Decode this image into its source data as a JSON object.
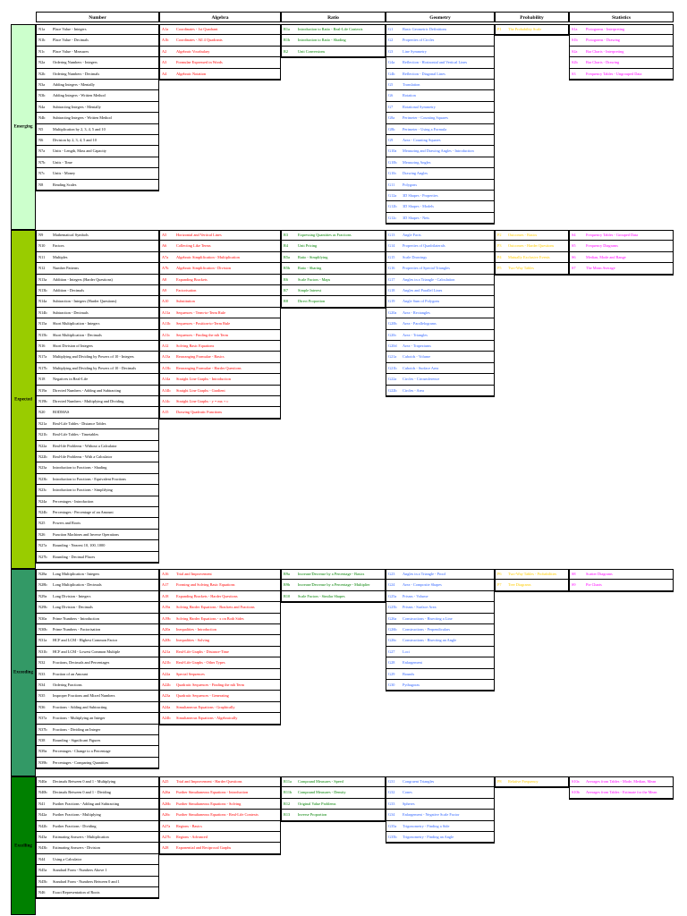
{
  "headers": [
    "Number",
    "Algebra",
    "Ratio",
    "Geometry",
    "Probability",
    "Statistics"
  ],
  "bands": [
    {
      "label": "Emerging",
      "color": "#ccffcc"
    },
    {
      "label": "Expected",
      "color": "#99cc00"
    },
    {
      "label": "Exceeding",
      "color": "#339966"
    },
    {
      "label": "Excelling",
      "color": "#008000"
    }
  ],
  "colors": {
    "number": "#000000",
    "algebra": "#ff0000",
    "ratio": "#008000",
    "geometry": "#3366ff",
    "probability": "#ffcc00",
    "statistics": "#ff00ff"
  },
  "number": [
    [
      [
        "N1a",
        "Place Value - Integers"
      ],
      [
        "N1b",
        "Place Value - Decimals"
      ],
      [
        "N1c",
        "Place Value - Measures"
      ],
      [
        "N2a",
        "Ordering Numbers - Integers"
      ],
      [
        "N2b",
        "Ordering Numbers - Decimals"
      ],
      [
        "N3a",
        "Adding Integers - Mentally"
      ],
      [
        "N3b",
        "Adding Integers - Written Method"
      ],
      [
        "N4a",
        "Subtracting Integers - Mentally"
      ],
      [
        "N4b",
        "Subtracting Integers - Written Method"
      ],
      [
        "N5",
        "Multiplication by 2, 3, 4, 5 and 10"
      ],
      [
        "N6",
        "Division by 2, 3, 4, 5 and 10"
      ],
      [
        "N7a",
        "Units - Length, Mass and Capacity"
      ],
      [
        "N7b",
        "Units - Time"
      ],
      [
        "N7c",
        "Units - Money"
      ],
      [
        "N8",
        "Reading Scales"
      ]
    ],
    [
      [
        "N9",
        "Mathematical Symbols"
      ],
      [
        "N10",
        "Factors"
      ],
      [
        "N11",
        "Multiples"
      ],
      [
        "N12",
        "Number Patterns"
      ],
      [
        "N13a",
        "Addition - Integers (Harder Questions)"
      ],
      [
        "N13b",
        "Addition - Decimals"
      ],
      [
        "N14a",
        "Subtraction - Integers (Harder Questions)"
      ],
      [
        "N14b",
        "Subtraction - Decimals"
      ],
      [
        "N15a",
        "Short Multiplication - Integers"
      ],
      [
        "N15b",
        "Short Multiplication - Decimals"
      ],
      [
        "N16",
        "Short Division of Integers"
      ],
      [
        "N17a",
        "Multiplying and Dividing by Powers of 10 - Integers"
      ],
      [
        "N17b",
        "Multiplying and Dividing by Powers of 10 - Decimals"
      ],
      [
        "N18",
        "Negatives in Real-Life"
      ],
      [
        "N19a",
        "Directed Numbers - Adding and Subtracting"
      ],
      [
        "N19b",
        "Directed Numbers - Multiplying and Dividing"
      ],
      [
        "N20",
        "BODMAS"
      ],
      [
        "N21a",
        "Real-Life Tables - Distance Tables"
      ],
      [
        "N21b",
        "Real-Life Tables - Timetables"
      ],
      [
        "N22a",
        "Real-life Problems - Without a Calculator"
      ],
      [
        "N22b",
        "Real-life Problems - With a Calculator"
      ],
      [
        "N23a",
        "Introduction to Fractions - Shading"
      ],
      [
        "N23b",
        "Introduction to Fractions - Equivalent Fractions"
      ],
      [
        "N23c",
        "Introduction to Fractions - Simplifying"
      ],
      [
        "N24a",
        "Percentages - Introduction"
      ],
      [
        "N24b",
        "Percentages - Percentage of an Amount"
      ],
      [
        "N25",
        "Powers and Roots"
      ],
      [
        "N26",
        "Function Machines and Inverse Operations"
      ],
      [
        "N27a",
        "Rounding - Nearest 10, 100, 1000"
      ],
      [
        "N27b",
        "Rounding - Decimal Places"
      ]
    ],
    [
      [
        "N28a",
        "Long Multiplication - Integers"
      ],
      [
        "N28b",
        "Long Multiplication - Decimals"
      ],
      [
        "N29a",
        "Long Division - Integers"
      ],
      [
        "N29b",
        "Long Division - Decimals"
      ],
      [
        "N30a",
        "Prime Numbers - Introduction"
      ],
      [
        "N30b",
        "Prime Numbers - Factorisation"
      ],
      [
        "N31a",
        "HCF and LCM - Highest Common Factor"
      ],
      [
        "N31b",
        "HCF and LCM - Lowest Common Multiple"
      ],
      [
        "N32",
        "Fractions, Decimals and Percentages"
      ],
      [
        "N33",
        "Fraction of an Amount"
      ],
      [
        "N34",
        "Ordering Fractions"
      ],
      [
        "N35",
        "Improper Fractions and Mixed Numbers"
      ],
      [
        "N36",
        "Fractions - Adding and Subtracting"
      ],
      [
        "N37a",
        "Fractions - Multiplying an Integer"
      ],
      [
        "N37b",
        "Fractions - Dividing an Integer"
      ],
      [
        "N38",
        "Rounding - Significant Figures"
      ],
      [
        "N39a",
        "Percentages - Change to a Percentage"
      ],
      [
        "N39b",
        "Percentages - Comparing Quantities"
      ]
    ],
    [
      [
        "N40a",
        "Decimals Between 0 and 1 - Multiplying"
      ],
      [
        "N40b",
        "Decimals Between 0 and 1 - Dividing"
      ],
      [
        "N41",
        "Further Fractions - Adding and Subtracting"
      ],
      [
        "N42a",
        "Further Fractions - Multiplying"
      ],
      [
        "N42b",
        "Further Fractions - Dividing"
      ],
      [
        "N43a",
        "Estimating Answers - Multiplication"
      ],
      [
        "N43b",
        "Estimating Answers - Division"
      ],
      [
        "N44",
        "Using a Calculator"
      ],
      [
        "N45a",
        "Standard Form - Numbers Above 1"
      ],
      [
        "N45b",
        "Standard Form - Numbers Between 0 and 1"
      ],
      [
        "N46",
        "Exact Representation of Roots"
      ]
    ]
  ],
  "algebra": [
    [
      [
        "A1a",
        "Coordinates - 1st Quadrant"
      ],
      [
        "A1b",
        "Coordinates - All 4 Quadrants"
      ],
      [
        "A2",
        "Algebraic Vocabulary"
      ],
      [
        "A3",
        "Formulae Expressed in Words"
      ],
      [
        "A4",
        "Algebraic Notation"
      ]
    ],
    [
      [
        "A5",
        "Horizontal and Vertical Lines"
      ],
      [
        "A6",
        "Collecting Like Terms"
      ],
      [
        "A7a",
        "Algebraic Simplification - Multiplication"
      ],
      [
        "A7b",
        "Algebraic Simplification - Division"
      ],
      [
        "A8",
        "Expanding Brackets"
      ],
      [
        "A9",
        "Factorisation"
      ],
      [
        "A10",
        "Substitution"
      ],
      [
        "A11a",
        "Sequences - Term-to-Term Rule"
      ],
      [
        "A11b",
        "Sequences - Position-to-Term Rule"
      ],
      [
        "A11c",
        "Sequences - Finding the nth Term"
      ],
      [
        "A12",
        "Solving Basic Equations"
      ],
      [
        "A13a",
        "Rearranging Formulae - Basics"
      ],
      [
        "A13b",
        "Rearranging Formulae - Harder Questions"
      ],
      [
        "A14a",
        "Straight Line Graphs - Introduction"
      ],
      [
        "A14b",
        "Straight Line Graphs - Gradient"
      ],
      [
        "A14c",
        "Straight Line Graphs - y = mx + c"
      ],
      [
        "A15",
        "Drawing Quadratic Functions"
      ]
    ],
    [
      [
        "A16",
        "Trial and Improvement"
      ],
      [
        "A17",
        "Forming and Solving Basic Equations"
      ],
      [
        "A18",
        "Expanding Brackets - Harder Questions"
      ],
      [
        "A19a",
        "Solving Harder Equations - Brackets and Fractions"
      ],
      [
        "A19b",
        "Solving Harder Equations - x on Both Sides"
      ],
      [
        "A20a",
        "Inequalities - Introduction"
      ],
      [
        "A20b",
        "Inequalities - Solving"
      ],
      [
        "A21a",
        "Real-Life Graphs - Distance-Time"
      ],
      [
        "A21b",
        "Real-Life Graphs - Other Types"
      ],
      [
        "A22a",
        "Special Sequences"
      ],
      [
        "A22b",
        "Quadratic Sequences - Finding the nth Term"
      ],
      [
        "A23a",
        "Quadratic Sequences - Generating"
      ],
      [
        "A24a",
        "Simultaneous Equations - Graphically"
      ],
      [
        "A24b",
        "Simultaneous Equations - Algebraically"
      ]
    ],
    [
      [
        "A25",
        "Trial and Improvement - Harder Questions"
      ],
      [
        "A26a",
        "Further Simultaneous Equations - Introduction"
      ],
      [
        "A26b",
        "Further Simultaneous Equations - Solving"
      ],
      [
        "A26c",
        "Further Simultaneous Equations - Real-Life Contexts"
      ],
      [
        "A27a",
        "Regions - Basics"
      ],
      [
        "A27b",
        "Regions - Advanced"
      ],
      [
        "A28",
        "Exponential and Reciprocal Graphs"
      ]
    ]
  ],
  "ratio": [
    [
      [
        "R1a",
        "Introduction to Ratio - Real-Life Contexts"
      ],
      [
        "R1b",
        "Introduction to Ratio - Shading"
      ],
      [
        "R2",
        "Unit Conversions"
      ]
    ],
    [
      [
        "R3",
        "Expressing Quantities as Fractions"
      ],
      [
        "R4",
        "Unit Pricing"
      ],
      [
        "R5a",
        "Ratio - Simplifying"
      ],
      [
        "R5b",
        "Ratio - Sharing"
      ],
      [
        "R6",
        "Scale Factors - Maps"
      ],
      [
        "R7",
        "Simple Interest"
      ],
      [
        "R8",
        "Direct Proportion"
      ]
    ],
    [
      [
        "R9a",
        "Increase/Decrease by a Percentage - Basics"
      ],
      [
        "R9b",
        "Increase/Decrease by a Percentage - Multiplier"
      ],
      [
        "R10",
        "Scale Factors - Similar Shapes"
      ]
    ],
    [
      [
        "R11a",
        "Compound Measures - Speed"
      ],
      [
        "R11b",
        "Compound Measures - Density"
      ],
      [
        "R12",
        "Original Value Problems"
      ],
      [
        "R13",
        "Inverse Proportion"
      ]
    ]
  ],
  "geometry": [
    [
      [
        "G1",
        "Basic Geometric Definitions"
      ],
      [
        "G2",
        "Properties of Circles"
      ],
      [
        "G3",
        "Line Symmetry"
      ],
      [
        "G4a",
        "Reflection - Horizontal and Vertical Lines"
      ],
      [
        "G4b",
        "Reflection - Diagonal Lines"
      ],
      [
        "G5",
        "Translation"
      ],
      [
        "G6",
        "Rotation"
      ],
      [
        "G7",
        "Rotational Symmetry"
      ],
      [
        "G8a",
        "Perimeter - Counting Squares"
      ],
      [
        "G8b",
        "Perimeter - Using a Formula"
      ],
      [
        "G9",
        "Area - Counting Squares"
      ],
      [
        "G10a",
        "Measuring and Drawing Angles - Introduction"
      ],
      [
        "G10b",
        "Measuring Angles"
      ],
      [
        "G10c",
        "Drawing Angles"
      ],
      [
        "G11",
        "Polygons"
      ],
      [
        "G12a",
        "3D Shapes - Properties"
      ],
      [
        "G12b",
        "3D Shapes - Models"
      ],
      [
        "G12c",
        "3D Shapes - Nets"
      ]
    ],
    [
      [
        "G13",
        "Angle Facts"
      ],
      [
        "G14",
        "Properties of Quadrilaterals"
      ],
      [
        "G15",
        "Scale Drawings"
      ],
      [
        "G16",
        "Properties of Special Triangles"
      ],
      [
        "G17",
        "Angles in a Triangle - Calculation"
      ],
      [
        "G18",
        "Angles and Parallel Lines"
      ],
      [
        "G19",
        "Angle Sum of Polygons"
      ],
      [
        "G20a",
        "Area - Rectangles"
      ],
      [
        "G20b",
        "Area - Parallelograms"
      ],
      [
        "G20c",
        "Area - Triangles"
      ],
      [
        "G20d",
        "Area - Trapeziums"
      ],
      [
        "G21a",
        "Cuboids - Volume"
      ],
      [
        "G21b",
        "Cuboids - Surface Area"
      ],
      [
        "G22a",
        "Circles - Circumference"
      ],
      [
        "G22b",
        "Circles - Area"
      ]
    ],
    [
      [
        "G23",
        "Angles in a Triangle - Proof"
      ],
      [
        "G24",
        "Area - Composite Shapes"
      ],
      [
        "G25a",
        "Prisms - Volume"
      ],
      [
        "G25b",
        "Prisms - Surface Area"
      ],
      [
        "G26a",
        "Constructions - Bisecting a Line"
      ],
      [
        "G26b",
        "Constructions - Perpendiculars"
      ],
      [
        "G26c",
        "Constructions - Bisecting an Angle"
      ],
      [
        "G27",
        "Loci"
      ],
      [
        "G28",
        "Enlargement"
      ],
      [
        "G29",
        "Bounds"
      ],
      [
        "G30",
        "Pythagoras"
      ]
    ],
    [
      [
        "G31",
        "Congruent Triangles"
      ],
      [
        "G32",
        "Cones"
      ],
      [
        "G33",
        "Spheres"
      ],
      [
        "G34",
        "Enlargement - Negative Scale Factor"
      ],
      [
        "G35a",
        "Trigonometry - Finding a Side"
      ],
      [
        "G35b",
        "Trigonometry - Finding an Angle"
      ]
    ]
  ],
  "probability": [
    [
      [
        "P1",
        "The Probability Scale"
      ]
    ],
    [
      [
        "P2",
        "Outcomes - Basics"
      ],
      [
        "P3",
        "Outcomes - Harder Questions"
      ],
      [
        "P4",
        "Mutually Exclusive Events"
      ],
      [
        "P5",
        "Two-Way Tables"
      ]
    ],
    [
      [
        "P6",
        "Two-Way Tables - Probabilities"
      ],
      [
        "P7",
        "Tree Diagrams"
      ]
    ],
    [
      [
        "P8",
        "Relative Frequency"
      ]
    ]
  ],
  "statistics": [
    [
      [
        "S1a",
        "Pictograms - Interpreting"
      ],
      [
        "S1b",
        "Pictograms - Drawing"
      ],
      [
        "S2a",
        "Bar Charts - Interpreting"
      ],
      [
        "S2b",
        "Bar Charts - Drawing"
      ],
      [
        "S3",
        "Frequency Tables - Ungrouped Data"
      ]
    ],
    [
      [
        "S4",
        "Frequency Tables - Grouped Data"
      ],
      [
        "S5",
        "Frequency Diagrams"
      ],
      [
        "S6",
        "Median, Mode and Range"
      ],
      [
        "S7",
        "The Mean Average"
      ]
    ],
    [
      [
        "S8",
        "Scatter Diagrams"
      ],
      [
        "S9",
        "Pie Charts"
      ]
    ],
    [
      [
        "S10a",
        "Averages from Tables - Mode, Median, Mean"
      ],
      [
        "S10b",
        "Averages from Tables - Estimate for the Mean"
      ]
    ]
  ]
}
